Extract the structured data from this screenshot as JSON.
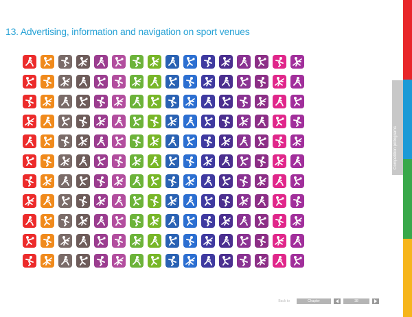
{
  "page": {
    "title": "13. Advertising, information and navigation on sport venues",
    "side_tab_label": "Competition pictograms"
  },
  "pictogram_grid": {
    "columns": 16,
    "rows": 11,
    "column_colors": [
      "#ec2b2b",
      "#f08a1c",
      "#7a6b68",
      "#6e5c5a",
      "#9b3d8f",
      "#b24e9e",
      "#6cb33a",
      "#78b628",
      "#2a62b3",
      "#2c6fd1",
      "#3f3aa0",
      "#4b2f8f",
      "#8a3392",
      "#8c2f86",
      "#e0278a",
      "#a12f9b"
    ],
    "icon_names": [
      "athletics-icon",
      "basketball-icon",
      "boxing-icon",
      "canoeing-icon",
      "cycling-icon",
      "diving-icon",
      "equestrian-icon",
      "fencing-icon",
      "football-icon",
      "gymnastics-icon",
      "handball-icon",
      "hockey-icon",
      "judo-icon",
      "rowing-icon",
      "sailing-icon",
      "shooting-icon"
    ]
  },
  "side_stripes": [
    "#e8262a",
    "#1b9ad6",
    "#39a84a",
    "#f6b51b"
  ],
  "footer": {
    "back_label": "Back to",
    "chapter_label": "Chapter",
    "page_number": "38"
  }
}
